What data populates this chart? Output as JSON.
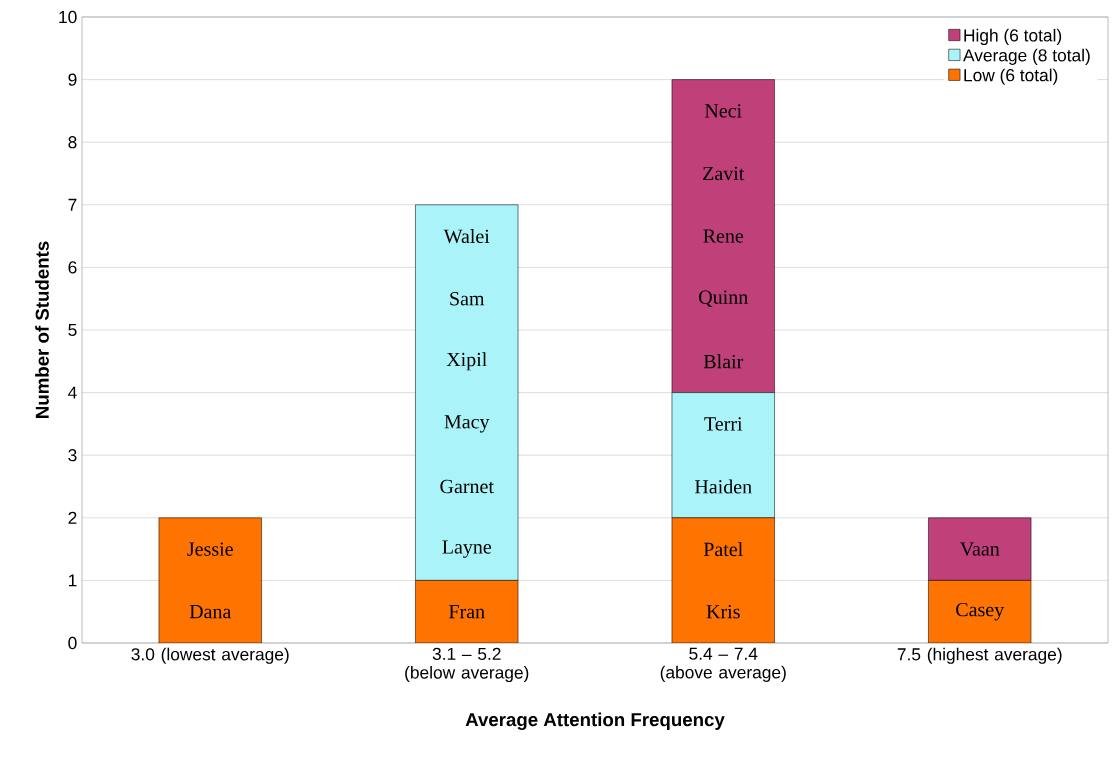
{
  "chart_data": {
    "type": "bar",
    "stacked": true,
    "categories": [
      "3.0 (lowest average)",
      "3.1 – 5.2 (below average)",
      "5.4 – 7.4 (above average)",
      "7.5 (highest average)"
    ],
    "series": [
      {
        "name": "Low (6 total)",
        "color": "#ff7300",
        "values": [
          2,
          1,
          2,
          1
        ]
      },
      {
        "name": "Average (8 total)",
        "color": "#aaf4f9",
        "values": [
          0,
          6,
          2,
          0
        ]
      },
      {
        "name": "High (6 total)",
        "color": "#c0407a",
        "values": [
          0,
          0,
          5,
          1
        ]
      }
    ],
    "xlabel": "Average Attention Frequency",
    "ylabel": "Number of Students",
    "ylim": [
      0,
      10
    ],
    "yticks": [
      0,
      1,
      2,
      3,
      4,
      5,
      6,
      7,
      8,
      9,
      10
    ],
    "grid": "y",
    "legend": "top right",
    "annotations": [
      "Dana",
      "Jessie",
      "Fran",
      "Layne",
      "Garnet",
      "Macy",
      "Xipil",
      "Sam",
      "Walei",
      "Kris",
      "Patel",
      "Haiden",
      "Terri",
      "Blair",
      "Quinn",
      "Rene",
      "Zavit",
      "Neci",
      "Casey",
      "Vaan"
    ]
  }
}
